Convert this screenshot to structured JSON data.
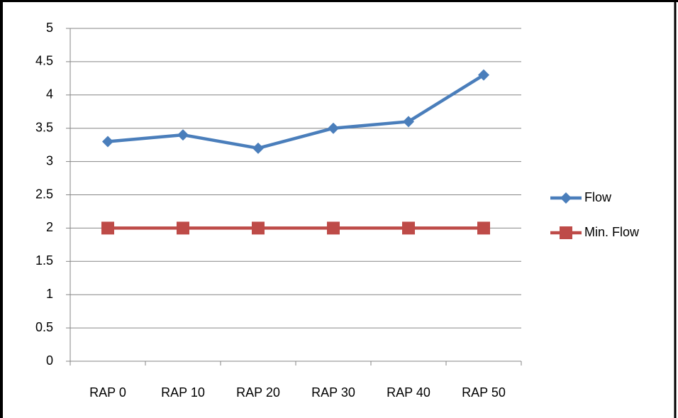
{
  "chart_data": {
    "type": "line",
    "categories": [
      "RAP 0",
      "RAP 10",
      "RAP 20",
      "RAP 30",
      "RAP 40",
      "RAP 50"
    ],
    "series": [
      {
        "name": "Flow",
        "color": "#4a7ebb",
        "marker": "diamond",
        "values": [
          3.3,
          3.4,
          3.2,
          3.5,
          3.6,
          4.3
        ]
      },
      {
        "name": "Min. Flow",
        "color": "#be4b48",
        "marker": "square",
        "values": [
          2,
          2,
          2,
          2,
          2,
          2
        ]
      }
    ],
    "ylim": [
      0,
      5
    ],
    "yticks": [
      0,
      0.5,
      1,
      1.5,
      2,
      2.5,
      3,
      3.5,
      4,
      4.5,
      5
    ],
    "grid": true,
    "legend": "right"
  }
}
